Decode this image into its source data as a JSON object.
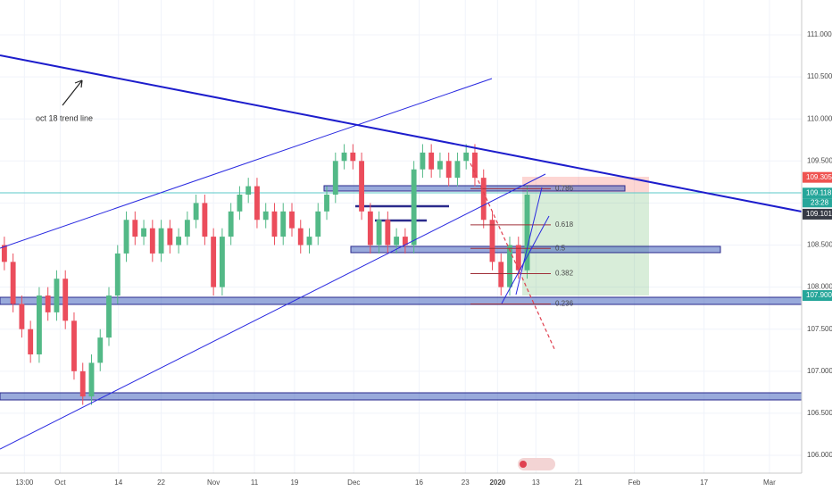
{
  "chart_data": {
    "type": "candlestick",
    "x": [
      0.5,
      1.5,
      2.5,
      3.5,
      4.5,
      5.5,
      6.5,
      7.5,
      8.5,
      9.5,
      10.5,
      11.5,
      12.5,
      13.5,
      14.5,
      15.5,
      16.5,
      17.5,
      18.5,
      19.5,
      20.5,
      21.5,
      22.5,
      23.5,
      24.5,
      25.5,
      26.5,
      27.5,
      28.5,
      29.5,
      30.5,
      31.5,
      32.5,
      33.5,
      34.5,
      35.5,
      36.5,
      37.5,
      38.5,
      39.5,
      40.5,
      41.5,
      42.5,
      43.5,
      44.5,
      45.5,
      46.5,
      47.5,
      48.5,
      49.5,
      50.5,
      51.5,
      52.5,
      53.5,
      54.5,
      55.5,
      56.5,
      57.5,
      58.5,
      59.5,
      60.5
    ],
    "open": [
      108.5,
      108.3,
      107.8,
      107.5,
      107.2,
      107.9,
      107.7,
      108.1,
      107.6,
      107.0,
      106.7,
      107.1,
      107.4,
      107.9,
      108.4,
      108.8,
      108.6,
      108.7,
      108.4,
      108.7,
      108.5,
      108.6,
      108.8,
      109.0,
      108.6,
      108.0,
      108.6,
      108.9,
      109.1,
      109.2,
      108.8,
      108.9,
      108.6,
      108.9,
      108.7,
      108.5,
      108.6,
      108.9,
      109.1,
      109.5,
      109.6,
      109.5,
      108.9,
      108.5,
      108.8,
      108.5,
      108.6,
      108.5,
      109.4,
      109.6,
      109.4,
      109.5,
      109.3,
      109.5,
      109.6,
      109.3,
      108.8,
      108.3,
      108.0,
      108.5,
      108.2
    ],
    "high": [
      108.6,
      108.4,
      107.9,
      107.6,
      108.0,
      108.0,
      108.2,
      108.2,
      107.7,
      107.1,
      107.2,
      107.5,
      108.0,
      108.5,
      108.9,
      108.9,
      108.8,
      108.8,
      108.8,
      108.8,
      108.7,
      108.9,
      109.1,
      109.1,
      108.7,
      108.7,
      109.0,
      109.2,
      109.3,
      109.3,
      109.0,
      109.0,
      109.0,
      109.0,
      108.8,
      108.7,
      109.0,
      109.2,
      109.6,
      109.7,
      109.7,
      109.6,
      109.0,
      108.9,
      108.9,
      108.7,
      108.7,
      109.5,
      109.7,
      109.7,
      109.6,
      109.6,
      109.6,
      109.7,
      109.7,
      109.4,
      108.9,
      108.4,
      108.6,
      108.6,
      109.2
    ],
    "low": [
      108.2,
      107.7,
      107.4,
      107.1,
      107.1,
      107.6,
      107.6,
      107.5,
      106.9,
      106.6,
      106.6,
      107.0,
      107.3,
      107.8,
      108.3,
      108.5,
      108.5,
      108.3,
      108.3,
      108.4,
      108.4,
      108.5,
      108.7,
      108.5,
      107.9,
      107.9,
      108.5,
      108.8,
      109.0,
      108.7,
      108.7,
      108.5,
      108.5,
      108.6,
      108.4,
      108.4,
      108.5,
      108.8,
      109.0,
      109.4,
      109.4,
      108.8,
      108.4,
      108.4,
      108.4,
      108.4,
      108.4,
      108.4,
      109.3,
      109.3,
      109.3,
      109.2,
      109.2,
      109.4,
      109.2,
      108.7,
      108.2,
      107.9,
      107.9,
      108.1,
      108.1
    ],
    "close": [
      108.3,
      107.8,
      107.5,
      107.2,
      107.9,
      107.7,
      108.1,
      107.6,
      107.0,
      106.7,
      107.1,
      107.4,
      107.9,
      108.4,
      108.8,
      108.6,
      108.7,
      108.4,
      108.7,
      108.5,
      108.6,
      108.8,
      109.0,
      108.6,
      108.0,
      108.6,
      108.9,
      109.1,
      109.2,
      108.8,
      108.9,
      108.6,
      108.9,
      108.7,
      108.5,
      108.6,
      108.9,
      109.1,
      109.5,
      109.6,
      109.5,
      108.9,
      108.5,
      108.8,
      108.5,
      108.6,
      108.5,
      109.4,
      109.6,
      109.4,
      109.5,
      109.3,
      109.5,
      109.6,
      109.3,
      108.8,
      108.3,
      108.0,
      108.5,
      108.2,
      109.1
    ],
    "up_color": "#53b987",
    "down_color": "#eb4d5c",
    "xlim": [
      0,
      92
    ],
    "xticks": [
      {
        "value": 2.8,
        "label": "13:00"
      },
      {
        "value": 6.9,
        "label": "Oct"
      },
      {
        "value": 13.6,
        "label": "14"
      },
      {
        "value": 18.5,
        "label": "22"
      },
      {
        "value": 24.5,
        "label": "Nov"
      },
      {
        "value": 29.2,
        "label": "11"
      },
      {
        "value": 33.8,
        "label": "19"
      },
      {
        "value": 40.6,
        "label": "Dec"
      },
      {
        "value": 48.1,
        "label": "16"
      },
      {
        "value": 53.4,
        "label": "23"
      },
      {
        "value": 57.1,
        "label": "2020"
      },
      {
        "value": 61.5,
        "label": "13"
      },
      {
        "value": 66.4,
        "label": "21"
      },
      {
        "value": 72.8,
        "label": "Feb"
      },
      {
        "value": 80.8,
        "label": "17"
      },
      {
        "value": 88.3,
        "label": "Mar"
      }
    ],
    "ylim": [
      105.788,
      111.414
    ],
    "yticks": [
      {
        "value": 106,
        "label": "106.000"
      },
      {
        "value": 106.5,
        "label": "106.500"
      },
      {
        "value": 107,
        "label": "107.000"
      },
      {
        "value": 107.5,
        "label": "107.500"
      },
      {
        "value": 108,
        "label": "108.000"
      },
      {
        "value": 108.5,
        "label": "108.500"
      },
      {
        "value": 109,
        "label": "109.000"
      },
      {
        "value": 109.5,
        "label": "109.500"
      },
      {
        "value": 110,
        "label": "110.000"
      },
      {
        "value": 110.5,
        "label": "110.500"
      },
      {
        "value": 111,
        "label": "111.000"
      }
    ],
    "price_tags": [
      {
        "value": 109.305,
        "label": "109.305",
        "color": "#ef5350"
      },
      {
        "value": 109.118,
        "label": "109.118",
        "color": "#26a69a"
      },
      {
        "value": 109.101,
        "label": "109.101",
        "color": "#363a45"
      },
      {
        "value": 107.9,
        "label": "107.900",
        "color": "#26a69a"
      }
    ],
    "countdown": "23:28",
    "annotation": "oct 18 trend line",
    "fib_levels": [
      {
        "level": 0.786,
        "price": 109.17
      },
      {
        "level": 0.618,
        "price": 108.74
      },
      {
        "level": 0.5,
        "price": 108.46
      },
      {
        "level": 0.382,
        "price": 108.16
      },
      {
        "level": 0.236,
        "price": 107.8
      }
    ]
  }
}
